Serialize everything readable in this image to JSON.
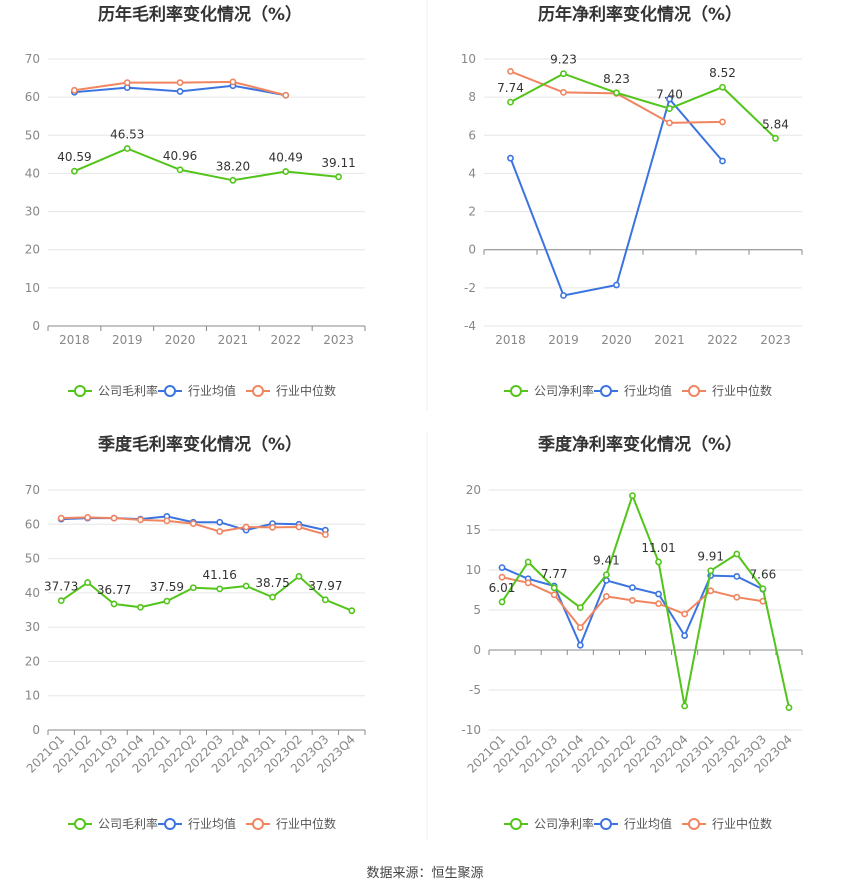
{
  "colors": {
    "company": "#52c41a",
    "avg": "#3b74e0",
    "median": "#f08560"
  },
  "chart_data": [
    {
      "type": "line",
      "title": "历年毛利率变化情况（%）",
      "categories": [
        "2018",
        "2019",
        "2020",
        "2021",
        "2022",
        "2023"
      ],
      "ylim": [
        0,
        70
      ],
      "yticks": [
        0,
        10,
        20,
        30,
        40,
        50,
        60,
        70
      ],
      "series": [
        {
          "name": "公司毛利率",
          "values": [
            40.59,
            46.53,
            40.96,
            38.2,
            40.49,
            39.11
          ],
          "labels": [
            "40.59",
            "46.53",
            "40.96",
            "38.20",
            "40.49",
            "39.11"
          ]
        },
        {
          "name": "行业均值",
          "values": [
            61.3,
            62.5,
            61.5,
            63.0,
            60.5,
            null
          ]
        },
        {
          "name": "行业中位数",
          "values": [
            61.8,
            63.8,
            63.8,
            64.0,
            60.5,
            null
          ]
        }
      ]
    },
    {
      "type": "line",
      "title": "历年净利率变化情况（%）",
      "categories": [
        "2018",
        "2019",
        "2020",
        "2021",
        "2022",
        "2023"
      ],
      "ylim": [
        -4,
        10
      ],
      "yticks": [
        -4,
        -2,
        0,
        2,
        4,
        6,
        8,
        10
      ],
      "series": [
        {
          "name": "公司净利率",
          "values": [
            7.74,
            9.23,
            8.23,
            7.4,
            8.52,
            5.84
          ],
          "labels": [
            "7.74",
            "9.23",
            "8.23",
            "7.40",
            "8.52",
            "5.84"
          ]
        },
        {
          "name": "行业均值",
          "values": [
            4.8,
            -2.4,
            -1.85,
            7.9,
            4.65,
            null
          ]
        },
        {
          "name": "行业中位数",
          "values": [
            9.35,
            8.25,
            8.2,
            6.65,
            6.7,
            null
          ]
        }
      ]
    },
    {
      "type": "line",
      "title": "季度毛利率变化情况（%）",
      "categories": [
        "2021Q1",
        "2021Q2",
        "2021Q3",
        "2021Q4",
        "2022Q1",
        "2022Q2",
        "2022Q3",
        "2022Q4",
        "2023Q1",
        "2023Q2",
        "2023Q3",
        "2023Q4"
      ],
      "ylim": [
        0,
        70
      ],
      "yticks": [
        0,
        10,
        20,
        30,
        40,
        50,
        60,
        70
      ],
      "series": [
        {
          "name": "公司毛利率",
          "values": [
            37.73,
            43.0,
            36.77,
            35.8,
            37.59,
            41.5,
            41.16,
            42.0,
            38.75,
            44.8,
            37.97,
            34.8
          ],
          "labels": [
            "37.73",
            "",
            "36.77",
            "",
            "37.59",
            "",
            "41.16",
            "",
            "38.75",
            "",
            "37.97",
            ""
          ]
        },
        {
          "name": "行业均值",
          "values": [
            61.5,
            61.8,
            61.8,
            61.5,
            62.3,
            60.6,
            60.6,
            58.3,
            60.2,
            60.0,
            58.3,
            null
          ]
        },
        {
          "name": "行业中位数",
          "values": [
            61.8,
            62.0,
            61.8,
            61.3,
            61.0,
            60.2,
            57.9,
            59.2,
            59.1,
            59.2,
            57.0,
            null
          ]
        }
      ]
    },
    {
      "type": "line",
      "title": "季度净利率变化情况（%）",
      "categories": [
        "2021Q1",
        "2021Q2",
        "2021Q3",
        "2021Q4",
        "2022Q1",
        "2022Q2",
        "2022Q3",
        "2022Q4",
        "2023Q1",
        "2023Q2",
        "2023Q3",
        "2023Q4"
      ],
      "ylim": [
        -10,
        20
      ],
      "yticks": [
        -10,
        -5,
        0,
        5,
        10,
        15,
        20
      ],
      "series": [
        {
          "name": "公司净利率",
          "values": [
            6.01,
            11.0,
            7.77,
            5.3,
            9.41,
            19.3,
            11.01,
            -7.0,
            9.91,
            12.0,
            7.66,
            -7.2
          ],
          "labels": [
            "6.01",
            "",
            "7.77",
            "",
            "9.41",
            "",
            "11.01",
            "",
            "9.91",
            "",
            "7.66",
            ""
          ]
        },
        {
          "name": "行业均值",
          "values": [
            10.3,
            8.9,
            8.0,
            0.6,
            8.7,
            7.8,
            7.0,
            1.8,
            9.3,
            9.2,
            7.6,
            null
          ]
        },
        {
          "name": "行业中位数",
          "values": [
            9.1,
            8.4,
            6.9,
            2.8,
            6.7,
            6.2,
            5.8,
            4.5,
            7.4,
            6.6,
            6.1,
            null
          ]
        }
      ]
    }
  ],
  "footer": {
    "source": "数据来源：恒生聚源"
  }
}
